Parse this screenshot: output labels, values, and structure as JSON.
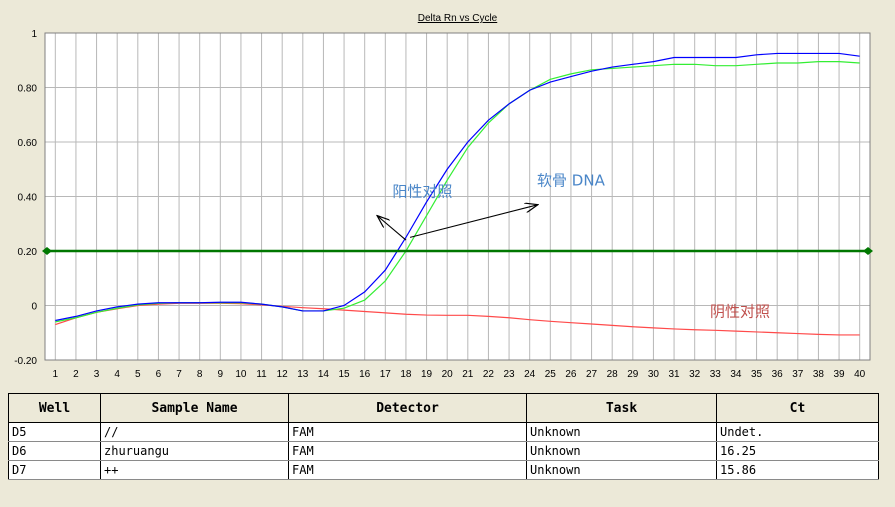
{
  "chart_data": {
    "type": "line",
    "title": "Delta Rn vs Cycle",
    "xlabel": "",
    "ylabel": "",
    "xlim": [
      0.5,
      40.5
    ],
    "ylim": [
      -0.2,
      1.0
    ],
    "x_ticks": [
      1,
      2,
      3,
      4,
      5,
      6,
      7,
      8,
      9,
      10,
      11,
      12,
      13,
      14,
      15,
      16,
      17,
      18,
      19,
      20,
      21,
      22,
      23,
      24,
      25,
      26,
      27,
      28,
      29,
      30,
      31,
      32,
      33,
      34,
      35,
      36,
      37,
      38,
      39,
      40
    ],
    "y_ticks": [
      -0.2,
      0,
      0.2,
      0.4,
      0.6,
      0.8,
      1
    ],
    "y_tick_labels": [
      "-0.20",
      "0",
      "0.20",
      "0.40",
      "0.60",
      "0.80",
      "1"
    ],
    "grid": true,
    "x": [
      1,
      2,
      3,
      4,
      5,
      6,
      7,
      8,
      9,
      10,
      11,
      12,
      13,
      14,
      15,
      16,
      17,
      18,
      19,
      20,
      21,
      22,
      23,
      24,
      25,
      26,
      27,
      28,
      29,
      30,
      31,
      32,
      33,
      34,
      35,
      36,
      37,
      38,
      39,
      40
    ],
    "series": [
      {
        "color": "#0000ff",
        "values": [
          -0.055,
          -0.04,
          -0.02,
          -0.005,
          0.005,
          0.01,
          0.01,
          0.01,
          0.012,
          0.012,
          0.005,
          -0.005,
          -0.02,
          -0.02,
          0.0,
          0.05,
          0.13,
          0.25,
          0.38,
          0.5,
          0.6,
          0.68,
          0.74,
          0.79,
          0.82,
          0.84,
          0.86,
          0.875,
          0.885,
          0.895,
          0.91,
          0.91,
          0.91,
          0.91,
          0.92,
          0.925,
          0.925,
          0.925,
          0.925,
          0.915
        ]
      },
      {
        "color": "#33ee33",
        "values": [
          -0.06,
          -0.045,
          -0.025,
          -0.01,
          0.002,
          0.008,
          0.01,
          0.01,
          0.01,
          0.01,
          0.005,
          -0.005,
          -0.02,
          -0.02,
          -0.01,
          0.02,
          0.09,
          0.2,
          0.33,
          0.46,
          0.58,
          0.67,
          0.74,
          0.79,
          0.83,
          0.85,
          0.865,
          0.87,
          0.875,
          0.88,
          0.885,
          0.885,
          0.88,
          0.88,
          0.885,
          0.89,
          0.89,
          0.895,
          0.895,
          0.89
        ]
      },
      {
        "color": "#ff4a4a",
        "values": [
          -0.07,
          -0.045,
          -0.025,
          -0.012,
          0.0,
          0.005,
          0.008,
          0.008,
          0.008,
          0.007,
          0.002,
          -0.003,
          -0.008,
          -0.012,
          -0.017,
          -0.022,
          -0.027,
          -0.032,
          -0.035,
          -0.036,
          -0.036,
          -0.04,
          -0.045,
          -0.052,
          -0.058,
          -0.063,
          -0.068,
          -0.073,
          -0.078,
          -0.082,
          -0.086,
          -0.089,
          -0.091,
          -0.094,
          -0.097,
          -0.1,
          -0.103,
          -0.106,
          -0.108,
          -0.108
        ]
      }
    ],
    "threshold": {
      "value": 0.2,
      "color": "#007700"
    },
    "annotations": [
      {
        "text": "阳性对照",
        "color": "#4a86c8",
        "x": 18.8,
        "y": 0.4,
        "arrow_to": [
          16.6,
          0.33
        ],
        "arrow_from": [
          18.0,
          0.24
        ]
      },
      {
        "text": "软骨 DNA",
        "color": "#4a86c8",
        "x": 26.0,
        "y": 0.44,
        "arrow_to": [
          24.4,
          0.37
        ],
        "arrow_from": [
          18.2,
          0.25
        ]
      },
      {
        "text": "阴性对照",
        "color": "#c0504d",
        "x": 34.2,
        "y": -0.04
      }
    ]
  },
  "table": {
    "columns": [
      "Well",
      "Sample Name",
      "Detector",
      "Task",
      "Ct"
    ],
    "rows": [
      [
        "D5",
        "//",
        "FAM",
        "Unknown",
        "Undet."
      ],
      [
        "D6",
        "zhuruangu",
        "FAM",
        "Unknown",
        "16.25"
      ],
      [
        "D7",
        "++",
        "FAM",
        "Unknown",
        "15.86"
      ]
    ]
  }
}
